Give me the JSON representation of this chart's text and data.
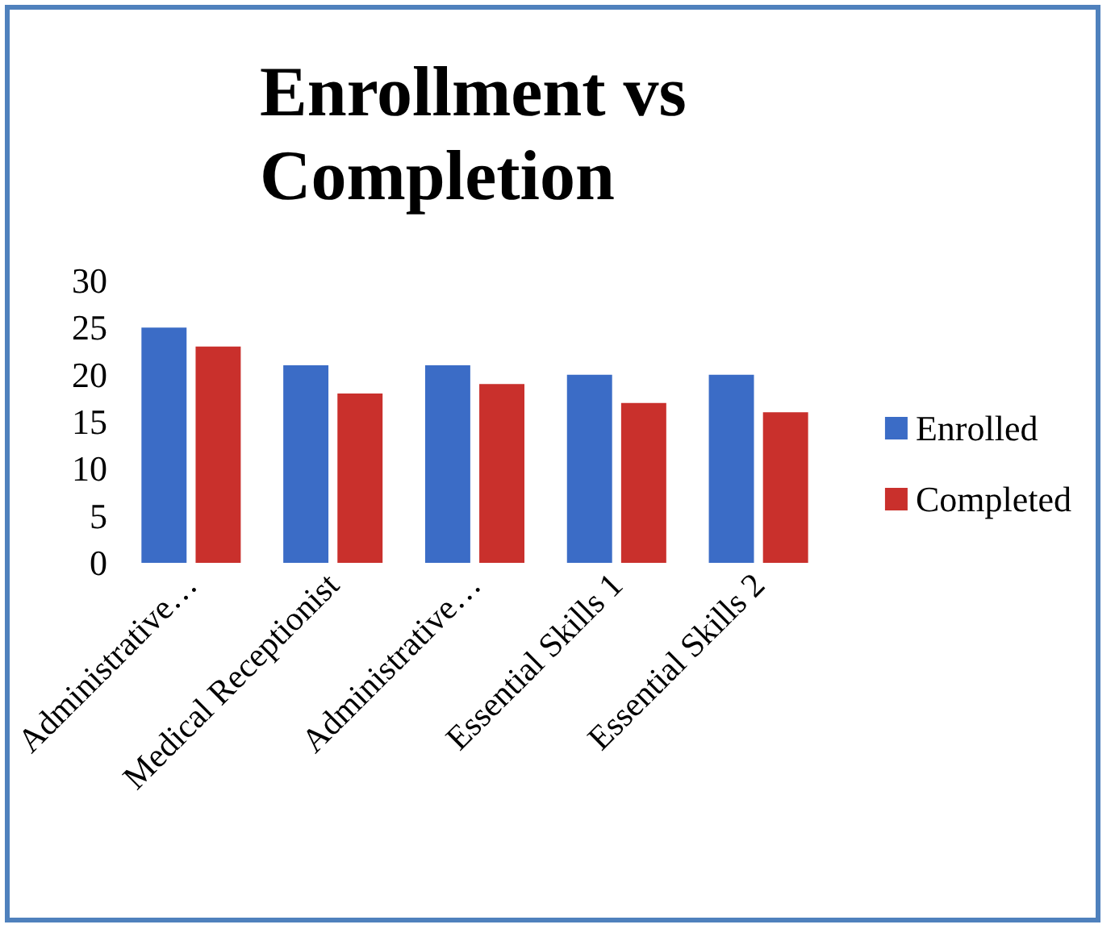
{
  "chart_data": {
    "type": "bar",
    "title": "Enrollment vs Completion",
    "categories": [
      "Administrative…",
      "Medical Receptionist",
      "Administrative…",
      "Essential Skills 1",
      "Essential Skills 2"
    ],
    "series": [
      {
        "name": "Enrolled",
        "color": "#3b6cc6",
        "values": [
          25,
          21,
          21,
          20,
          20
        ]
      },
      {
        "name": "Completed",
        "color": "#c9302c",
        "values": [
          23,
          18,
          19,
          17,
          16
        ]
      }
    ],
    "ylim": [
      0,
      30
    ],
    "yticks": [
      0,
      5,
      10,
      15,
      20,
      25,
      30
    ],
    "grid": false,
    "legend": "right"
  }
}
